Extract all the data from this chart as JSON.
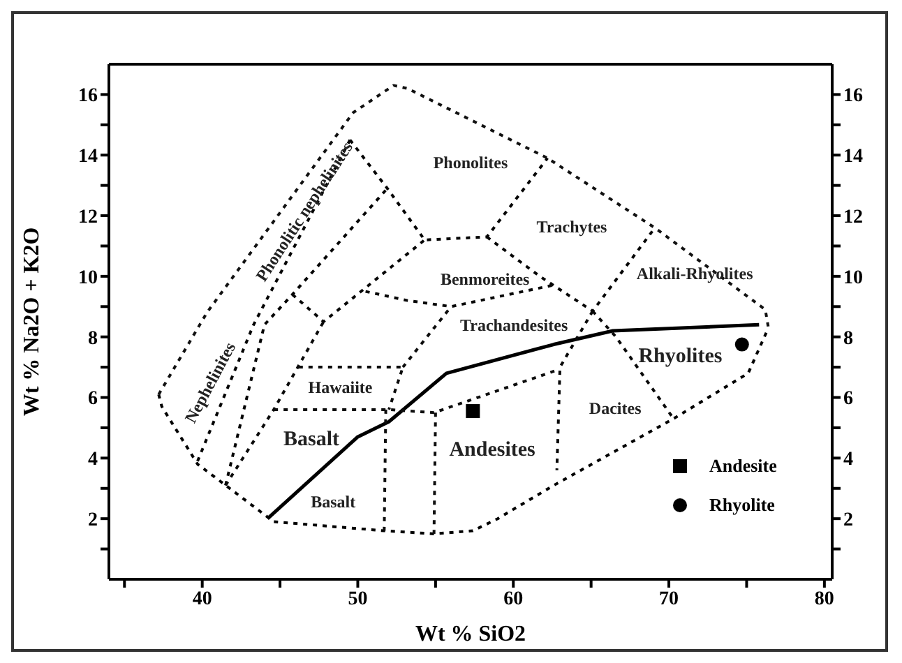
{
  "chart_data": {
    "type": "scatter",
    "xlabel": "Wt % SiO2",
    "ylabel": "Wt % Na2O + K2O",
    "xlim": [
      34,
      80.5
    ],
    "ylim": [
      0,
      17
    ],
    "y2lim": [
      0,
      17
    ],
    "xticks": [
      {
        "value": 35,
        "label": null
      },
      40,
      {
        "value": 45,
        "label": null
      },
      50,
      {
        "value": 55,
        "label": null
      },
      60,
      {
        "value": 65,
        "label": null
      },
      70,
      {
        "value": 75,
        "label": null
      },
      80
    ],
    "yticks": [
      {
        "value": 1,
        "label": null
      },
      2,
      {
        "value": 3,
        "label": null
      },
      4,
      {
        "value": 5,
        "label": null
      },
      6,
      {
        "value": 7,
        "label": null
      },
      8,
      {
        "value": 9,
        "label": null
      },
      10,
      {
        "value": 11,
        "label": null
      },
      12,
      {
        "value": 13,
        "label": null
      },
      14,
      {
        "value": 15,
        "label": null
      },
      16
    ],
    "y2ticks": [
      {
        "value": 1,
        "label": null
      },
      2,
      {
        "value": 3,
        "label": null
      },
      4,
      {
        "value": 5,
        "label": null
      },
      6,
      {
        "value": 7,
        "label": null
      },
      8,
      {
        "value": 9,
        "label": null
      },
      10,
      {
        "value": 11,
        "label": null
      },
      12,
      {
        "value": 13,
        "label": null
      },
      14,
      {
        "value": 15,
        "label": null
      },
      16
    ],
    "grid": false,
    "legend": "bottom right",
    "series": [
      {
        "name": "Andesite",
        "marker": "square",
        "color": "#000000",
        "x": [
          57.4
        ],
        "values": [
          5.55
        ]
      },
      {
        "name": "Rhyolite",
        "marker": "circle",
        "color": "#000000",
        "x": [
          74.7
        ],
        "values": [
          7.75
        ]
      },
      {
        "type": "line",
        "line_style": "solid",
        "color": "#000000",
        "x": [
          44.2,
          50.0,
          52.0,
          55.7,
          62.6,
          66.4,
          75.8
        ],
        "values": [
          2.0,
          4.7,
          5.2,
          6.8,
          7.75,
          8.2,
          8.4
        ]
      },
      {
        "type": "line",
        "line_style": "dashed",
        "color": "#010101",
        "x": [
          37.2,
          37.4,
          39.7,
          44.6,
          51.7,
          54.9,
          57.4,
          59.0,
          62.6,
          70.3,
          75.1,
          76.4
        ],
        "values": [
          6.1,
          5.7,
          3.8,
          1.9,
          1.6,
          1.5,
          1.6,
          2.0,
          3.1,
          5.3,
          6.8,
          8.3
        ]
      },
      {
        "type": "line",
        "line_style": "dashed",
        "color": "#111111",
        "x": [
          37.2,
          40.3,
          49.7,
          52.3,
          53.2,
          62.2,
          69.1,
          76.2,
          76.4
        ],
        "values": [
          6.1,
          8.8,
          15.4,
          16.3,
          16.2,
          13.9,
          11.6,
          8.9,
          8.3
        ]
      },
      {
        "type": "line",
        "line_style": "dashed",
        "color": "#020202",
        "x": [
          39.7,
          43.3,
          49.5
        ],
        "values": [
          3.9,
          8.4,
          14.5
        ]
      },
      {
        "type": "line",
        "line_style": "dashed",
        "color": "#030303",
        "x": [
          41.5,
          44.0,
          45.8,
          51.9
        ],
        "values": [
          3.1,
          8.4,
          9.4,
          12.9
        ]
      },
      {
        "type": "line",
        "line_style": "dashed",
        "color": "#040404",
        "x": [
          49.5,
          51.9,
          54.3,
          58.3,
          62.2
        ],
        "values": [
          14.5,
          12.9,
          11.2,
          11.3,
          13.9
        ]
      },
      {
        "type": "line",
        "line_style": "dashed",
        "color": "#050505",
        "x": [
          58.3,
          61.7,
          65.1,
          69.1
        ],
        "values": [
          11.3,
          10.0,
          8.85,
          11.6
        ]
      },
      {
        "type": "line",
        "line_style": "dashed",
        "color": "#060606",
        "x": [
          45.8,
          47.8,
          54.3
        ],
        "values": [
          9.4,
          8.5,
          11.2
        ]
      },
      {
        "type": "line",
        "line_style": "dashed",
        "color": "#070707",
        "x": [
          50.5,
          53.2,
          56.0,
          62.5
        ],
        "values": [
          9.5,
          9.2,
          9.0,
          9.7
        ]
      },
      {
        "type": "line",
        "line_style": "dashed",
        "color": "#080808",
        "x": [
          65.1,
          63.0,
          62.8
        ],
        "values": [
          8.85,
          7.0,
          3.6
        ]
      },
      {
        "type": "line",
        "line_style": "dashed",
        "color": "#090909",
        "x": [
          65.1,
          66.6,
          70.3
        ],
        "values": [
          8.85,
          8.0,
          5.3
        ]
      },
      {
        "type": "line",
        "line_style": "dashed",
        "color": "#0a0a0a",
        "x": [
          41.5,
          44.6,
          47.8
        ],
        "values": [
          3.1,
          5.6,
          8.5
        ]
      },
      {
        "type": "line",
        "line_style": "dashed",
        "color": "#0b0b0b",
        "x": [
          46.2,
          52.9,
          52.0
        ],
        "values": [
          7.0,
          7.0,
          5.6
        ]
      },
      {
        "type": "line",
        "line_style": "dashed",
        "color": "#0c0c0c",
        "x": [
          52.9,
          56.0
        ],
        "values": [
          7.0,
          9.0
        ]
      },
      {
        "type": "line",
        "line_style": "dashed",
        "color": "#0d0d0d",
        "x": [
          44.6,
          52.0,
          54.9,
          62.8
        ],
        "values": [
          5.6,
          5.6,
          5.5,
          6.9
        ]
      },
      {
        "type": "line",
        "line_style": "dashed",
        "color": "#0e0e0e",
        "x": [
          51.8,
          51.7
        ],
        "values": [
          5.6,
          1.6
        ]
      },
      {
        "type": "line",
        "line_style": "dashed",
        "color": "#0f0f0f",
        "x": [
          55.0,
          54.9
        ],
        "values": [
          5.5,
          1.5
        ]
      }
    ],
    "annotations": [
      "Phonolites",
      "Trachytes",
      "Benmoreites",
      "Phonolitic nephelinites",
      "Nephelinites",
      "Trachandesites",
      "Alkali-Rhyolites",
      "Rhyolites",
      "Hawaiite",
      "Basalt",
      "Basalt",
      "Andesites",
      "Dacites"
    ]
  }
}
